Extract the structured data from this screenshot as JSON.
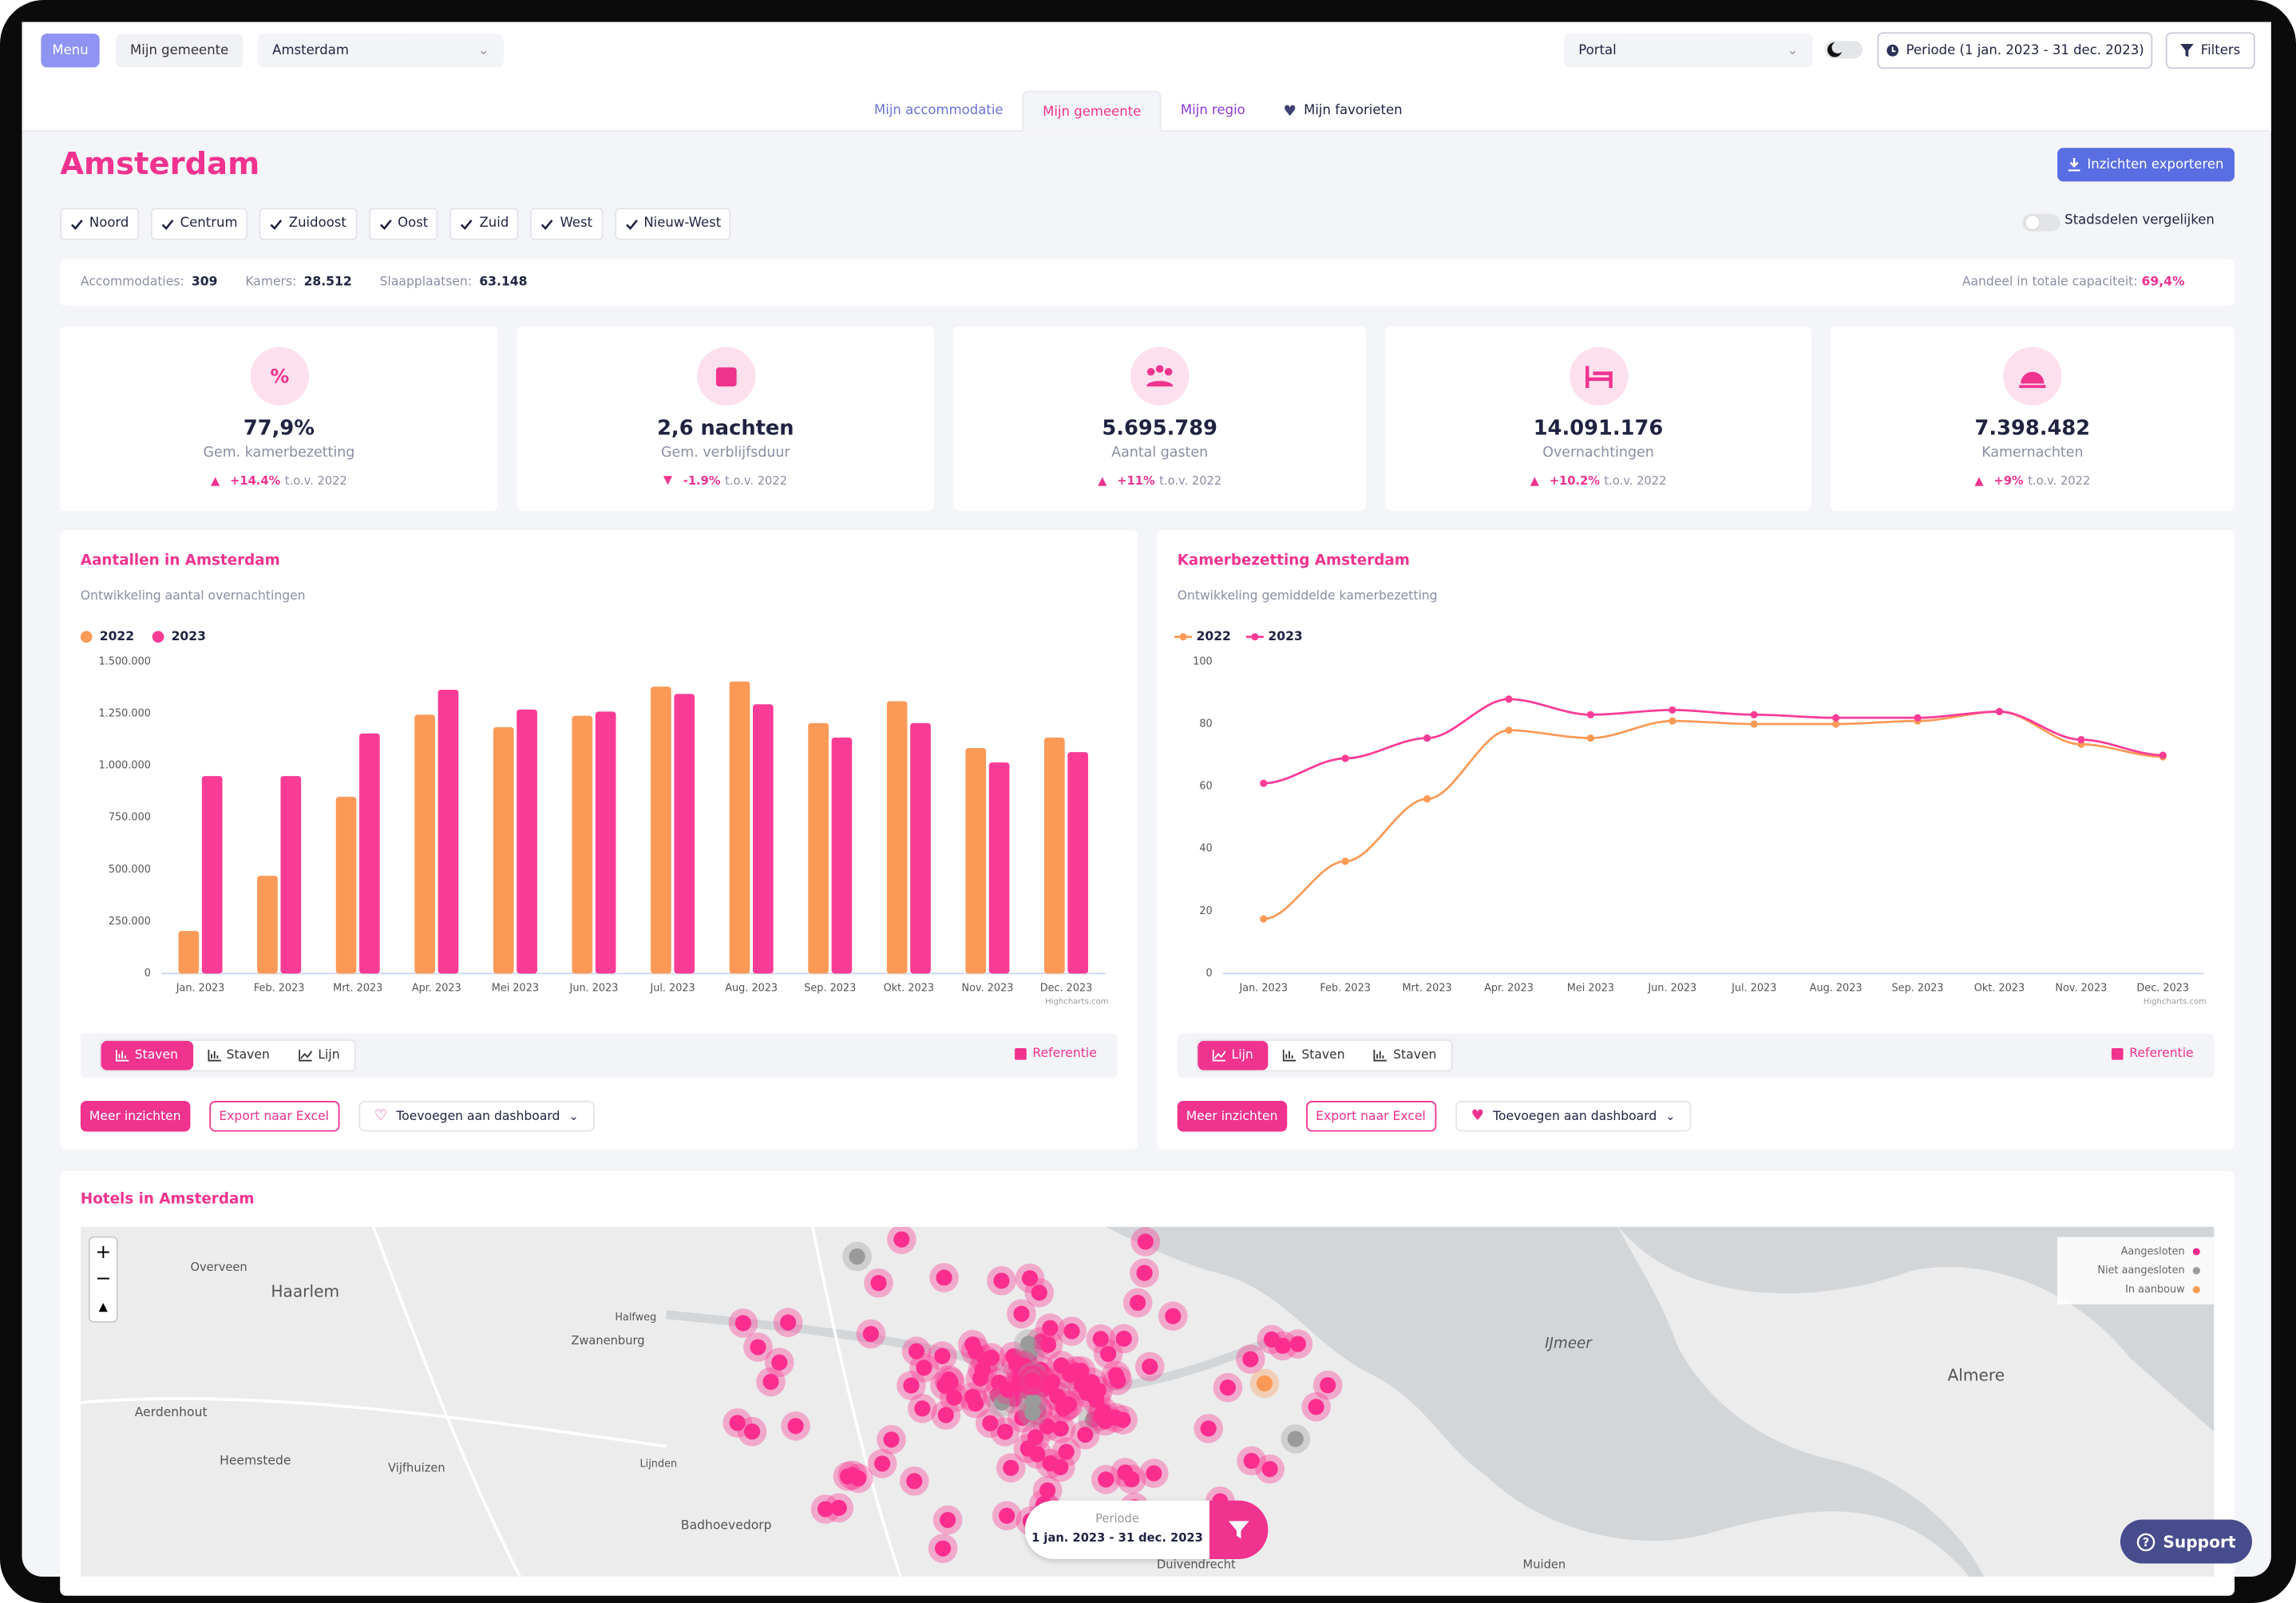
{
  "topbar": {
    "menu": "Menu",
    "my_municipality": "Mijn gemeente",
    "municipality_select": "Amsterdam",
    "portal_select": "Portal",
    "period": "Periode (1 jan. 2023 - 31 dec. 2023)",
    "filters": "Filters"
  },
  "tabs": [
    "Mijn accommodatie",
    "Mijn gemeente",
    "Mijn regio",
    "Mijn favorieten"
  ],
  "header": {
    "title": "Amsterdam",
    "export": "Inzichten exporteren",
    "districts": [
      "Noord",
      "Centrum",
      "Zuidoost",
      "Oost",
      "Zuid",
      "West",
      "Nieuw-West"
    ],
    "compare": "Stadsdelen vergelijken"
  },
  "stats": {
    "accommodations_label": "Accommodaties:",
    "accommodations": "309",
    "rooms_label": "Kamers:",
    "rooms": "28.512",
    "beds_label": "Slaapplaatsen:",
    "beds": "63.148",
    "share_label": "Aandeel in totale capaciteit:",
    "share": "69,4%"
  },
  "kpis": [
    {
      "value": "77,9%",
      "label": "Gem. kamerbezetting",
      "change": "+14.4%",
      "compare": "t.o.v. 2022"
    },
    {
      "value": "2,6 nachten",
      "label": "Gem. verblijfsduur",
      "change": "-1.9%",
      "compare": "t.o.v. 2022"
    },
    {
      "value": "5.695.789",
      "label": "Aantal gasten",
      "change": "+11%",
      "compare": "t.o.v. 2022"
    },
    {
      "value": "14.091.176",
      "label": "Overnachtingen",
      "change": "+10.2%",
      "compare": "t.o.v. 2022"
    },
    {
      "value": "7.398.482",
      "label": "Kamernachten",
      "change": "+9%",
      "compare": "t.o.v. 2022"
    }
  ],
  "bar_chart": {
    "type": "bar",
    "title": "Aantallen in Amsterdam",
    "subtitle": "Ontwikkeling aantal overnachtingen",
    "categories": [
      "Jan. 2023",
      "Feb. 2023",
      "Mrt. 2023",
      "Apr. 2023",
      "Mei 2023",
      "Jun. 2023",
      "Jul. 2023",
      "Aug. 2023",
      "Sep. 2023",
      "Okt. 2023",
      "Nov. 2023",
      "Dec. 2023"
    ],
    "series": [
      {
        "name": "2022",
        "color": "#fb9a57",
        "values": [
          205000,
          470000,
          850000,
          1245000,
          1185000,
          1240000,
          1380000,
          1405000,
          1205000,
          1310000,
          1085000,
          1135000
        ]
      },
      {
        "name": "2023",
        "color": "#fb3c96",
        "values": [
          950000,
          950000,
          1155000,
          1365000,
          1270000,
          1260000,
          1345000,
          1295000,
          1135000,
          1205000,
          1015000,
          1065000
        ]
      }
    ],
    "ylim": [
      0,
      1500000
    ],
    "yticks": [
      0,
      {
        "value": 250000,
        "label": "250.000"
      },
      {
        "value": 500000,
        "label": "500.000"
      },
      {
        "value": 750000,
        "label": "750.000"
      },
      {
        "value": 1000000,
        "label": "1.000.000"
      },
      {
        "value": 1250000,
        "label": "1.250.000"
      },
      {
        "value": 1500000,
        "label": "1.500.000"
      }
    ],
    "credit": "Highcharts.com",
    "view_buttons": [
      "Staven",
      "Staven",
      "Lijn"
    ],
    "reference": "Referentie",
    "actions": [
      "Meer inzichten",
      "Export naar Excel",
      "Toevoegen aan dashboard"
    ]
  },
  "line_chart": {
    "type": "line",
    "title": "Kamerbezetting Amsterdam",
    "subtitle": "Ontwikkeling gemiddelde kamerbezetting",
    "categories": [
      "Jan. 2023",
      "Feb. 2023",
      "Mrt. 2023",
      "Apr. 2023",
      "Mei 2023",
      "Jun. 2023",
      "Jul. 2023",
      "Aug. 2023",
      "Sep. 2023",
      "Okt. 2023",
      "Nov. 2023",
      "Dec. 2023"
    ],
    "series": [
      {
        "name": "2022",
        "color": "#fb9a57",
        "values": [
          17.5,
          36,
          56,
          78,
          75.5,
          81,
          80,
          80,
          81,
          84,
          73.5,
          69.5
        ]
      },
      {
        "name": "2023",
        "color": "#fb3c96",
        "values": [
          61,
          69,
          75.5,
          88,
          83,
          84.5,
          83,
          82,
          82,
          84,
          75,
          70
        ]
      }
    ],
    "ylim": [
      0,
      100
    ],
    "yticks": [
      0,
      20,
      40,
      60,
      80,
      100
    ],
    "credit": "Highcharts.com",
    "view_buttons": [
      "Lijn",
      "Staven",
      "Staven"
    ],
    "reference": "Referentie",
    "actions": [
      "Meer inzichten",
      "Export naar Excel",
      "Toevoegen aan dashboard"
    ]
  },
  "map": {
    "title": "Hotels in Amsterdam",
    "labels": [
      "Overveen",
      "Haarlem",
      "Zwanenburg",
      "Halfweg",
      "Aerdenhout",
      "Heemstede",
      "Vijfhuizen",
      "Lijnden",
      "Badhoevedorp",
      "Duivendrecht",
      "IJmeer",
      "Almere",
      "Muiden"
    ],
    "legend": [
      "Aangesloten",
      "Niet aangesloten",
      "In aanbouw"
    ],
    "period_label": "Periode",
    "period": "1 jan. 2023 - 31 dec. 2023"
  },
  "support": "Support"
}
